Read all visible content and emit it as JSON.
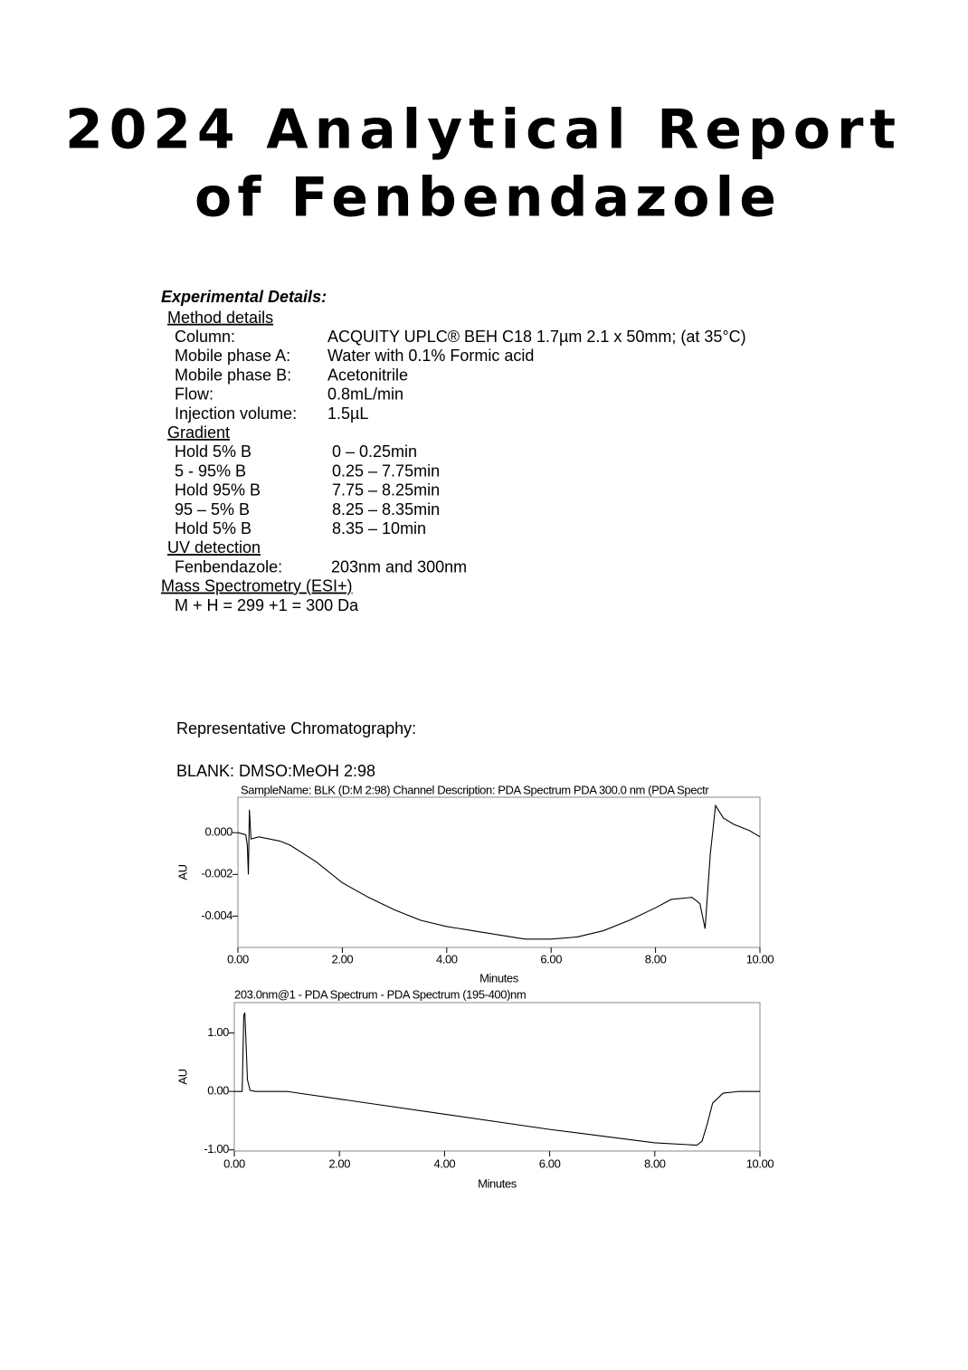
{
  "title_lines": [
    "2024 Analytical Report",
    "of Fenbendazole"
  ],
  "experimental": {
    "heading": "Experimental Details:",
    "sections": [
      {
        "heading": "Method details",
        "rows": [
          [
            "Column:",
            "ACQUITY UPLC® BEH C18 1.7µm 2.1 x 50mm; (at 35°C)"
          ],
          [
            "Mobile phase A:",
            "Water with 0.1% Formic acid"
          ],
          [
            "Mobile phase B:",
            "Acetonitrile"
          ],
          [
            "Flow:",
            "0.8mL/min"
          ],
          [
            "Injection volume:",
            "1.5µL"
          ]
        ]
      },
      {
        "heading": "Gradient",
        "rows": [
          [
            "Hold 5% B",
            "0 – 0.25min"
          ],
          [
            "5 - 95% B",
            "0.25 – 7.75min"
          ],
          [
            "Hold 95% B",
            "7.75 – 8.25min"
          ],
          [
            "95 – 5% B",
            "8.25 – 8.35min"
          ],
          [
            "Hold 5% B",
            "8.35 – 10min"
          ]
        ]
      },
      {
        "heading": "UV detection",
        "rows": [
          [
            "Fenbendazole:",
            "203nm and 300nm"
          ]
        ]
      },
      {
        "heading": "Mass Spectrometry (ESI+)",
        "rows": [
          [
            "M + H = 299 +1 = 300 Da"
          ]
        ]
      }
    ]
  },
  "chromatography_heading": "Representative Chromatography:",
  "sample_heading": "BLANK: DMSO:MeOH 2:98",
  "chart_data": [
    {
      "type": "line",
      "title": "SampleName: BLK (D:M 2:98) Channel Description: PDA Spectrum PDA 300.0 nm (PDA Spectr",
      "x_label": "Minutes",
      "y_label": "AU",
      "color": "#000000",
      "xlim": [
        0,
        10
      ],
      "ylim": [
        -0.0055,
        0.0017
      ],
      "xticks": [
        {
          "value": 0,
          "label": "0.00"
        },
        {
          "value": 2,
          "label": "2.00"
        },
        {
          "value": 4,
          "label": "4.00"
        },
        {
          "value": 6,
          "label": "6.00"
        },
        {
          "value": 8,
          "label": "8.00"
        },
        {
          "value": 10,
          "label": "10.00"
        }
      ],
      "yticks": [
        {
          "value": 0,
          "label": "0.000"
        },
        {
          "value": -0.002,
          "label": "-0.002"
        },
        {
          "value": -0.004,
          "label": "-0.004"
        }
      ],
      "x": [
        0,
        0.15,
        0.18,
        0.2,
        0.22,
        0.25,
        0.4,
        0.8,
        1.0,
        1.5,
        2.0,
        2.5,
        3.0,
        3.5,
        4.0,
        4.5,
        5.0,
        5.5,
        6.0,
        6.5,
        7.0,
        7.5,
        8.0,
        8.3,
        8.7,
        8.85,
        8.95,
        9.05,
        9.15,
        9.3,
        9.5,
        9.8,
        10.0
      ],
      "values": [
        0,
        -0.0001,
        -0.0006,
        -0.002,
        0.0011,
        -0.0003,
        -0.0002,
        -0.0004,
        -0.0006,
        -0.0014,
        -0.0024,
        -0.0031,
        -0.0037,
        -0.0042,
        -0.0045,
        -0.0047,
        -0.0049,
        -0.0051,
        -0.0051,
        -0.005,
        -0.0047,
        -0.0042,
        -0.0036,
        -0.0032,
        -0.0031,
        -0.0034,
        -0.0046,
        -0.001,
        0.0013,
        0.0007,
        0.0004,
        0.0001,
        -0.0002
      ]
    },
    {
      "type": "line",
      "title": "203.0nm@1 - PDA Spectrum - PDA Spectrum (195-400)nm",
      "x_label": "Minutes",
      "y_label": "AU",
      "color": "#000000",
      "xlim": [
        0,
        10
      ],
      "ylim": [
        -1.02,
        1.52
      ],
      "xticks": [
        {
          "value": 0,
          "label": "0.00"
        },
        {
          "value": 2,
          "label": "2.00"
        },
        {
          "value": 4,
          "label": "4.00"
        },
        {
          "value": 6,
          "label": "6.00"
        },
        {
          "value": 8,
          "label": "8.00"
        },
        {
          "value": 10,
          "label": "10.00"
        }
      ],
      "yticks": [
        {
          "value": 1,
          "label": "1.00"
        },
        {
          "value": 0,
          "label": "0.00"
        },
        {
          "value": -1,
          "label": "-1.00"
        }
      ],
      "x": [
        0,
        0.15,
        0.18,
        0.2,
        0.22,
        0.25,
        0.3,
        0.4,
        1.0,
        2.0,
        4.0,
        6.0,
        8.0,
        8.8,
        8.9,
        9.0,
        9.1,
        9.3,
        9.6,
        10.0
      ],
      "values": [
        0,
        0,
        1.3,
        1.35,
        0.9,
        0.2,
        0.02,
        0,
        0,
        -0.13,
        -0.39,
        -0.65,
        -0.88,
        -0.92,
        -0.85,
        -0.55,
        -0.2,
        -0.03,
        0,
        0
      ]
    }
  ]
}
